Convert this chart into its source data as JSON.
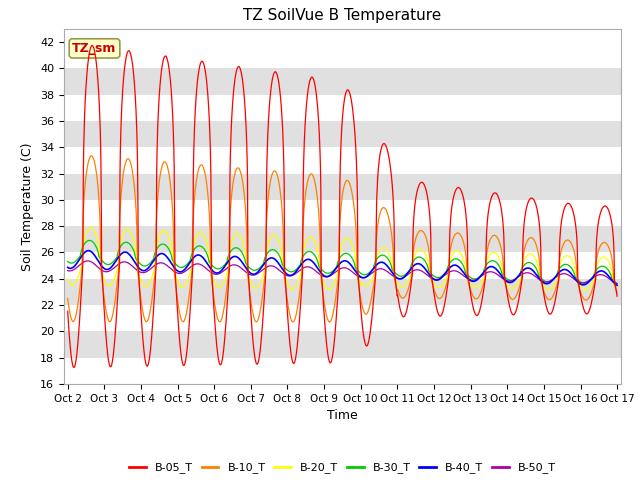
{
  "title": "TZ SoilVue B Temperature",
  "xlabel": "Time",
  "ylabel": "Soil Temperature (C)",
  "ylim": [
    16,
    43
  ],
  "yticks": [
    16,
    18,
    20,
    22,
    24,
    26,
    28,
    30,
    32,
    34,
    36,
    38,
    40,
    42
  ],
  "x_labels": [
    "Oct 2",
    "Oct 3",
    "Oct 4",
    "Oct 5",
    "Oct 6",
    "Oct 7",
    "Oct 8",
    "Oct 9",
    "Oct 10",
    "Oct 11",
    "Oct 12",
    "Oct 13",
    "Oct 14",
    "Oct 15",
    "Oct 16",
    "Oct 17"
  ],
  "legend_labels": [
    "B-05_T",
    "B-10_T",
    "B-20_T",
    "B-30_T",
    "B-40_T",
    "B-50_T"
  ],
  "colors": {
    "B-05_T": "#ff0000",
    "B-10_T": "#ff8000",
    "B-20_T": "#ffff00",
    "B-30_T": "#00cc00",
    "B-40_T": "#0000ff",
    "B-50_T": "#aa00aa"
  },
  "annotation_text": "TZ_sm",
  "annotation_color": "#cc0000",
  "annotation_bg": "#ffffcc",
  "band_colors": [
    "#ffffff",
    "#e0e0e0"
  ],
  "n_points": 1440
}
